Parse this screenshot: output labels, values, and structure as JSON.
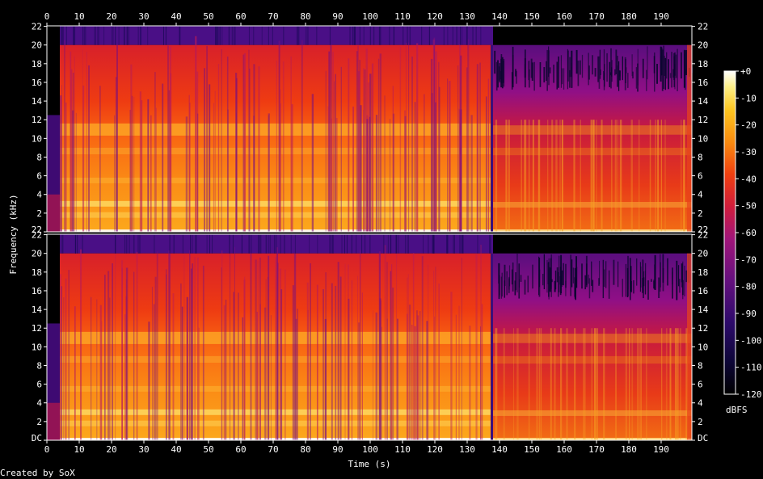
{
  "chart_data": {
    "type": "heatmap",
    "title": "",
    "xlabel": "Time (s)",
    "ylabel": "Frequency (kHz)",
    "xlim": [
      0,
      199.5
    ],
    "ylim": [
      0,
      22.05
    ],
    "x_ticks": [
      0,
      10,
      20,
      30,
      40,
      50,
      60,
      70,
      80,
      90,
      100,
      110,
      120,
      130,
      140,
      150,
      160,
      170,
      180,
      190
    ],
    "y_ticks": [
      {
        "value": 0,
        "label": "DC"
      },
      {
        "value": 2,
        "label": "2"
      },
      {
        "value": 4,
        "label": "4"
      },
      {
        "value": 6,
        "label": "6"
      },
      {
        "value": 8,
        "label": "8"
      },
      {
        "value": 10,
        "label": "10"
      },
      {
        "value": 12,
        "label": "12"
      },
      {
        "value": 14,
        "label": "14"
      },
      {
        "value": 16,
        "label": "16"
      },
      {
        "value": 18,
        "label": "18"
      },
      {
        "value": 20,
        "label": "20"
      },
      {
        "value": 22,
        "label": "22"
      }
    ],
    "colorbar": {
      "label": "dBFS",
      "range": [
        -120,
        0
      ],
      "ticks": [
        "+0",
        "-10",
        "-20",
        "-30",
        "-40",
        "-50",
        "-60",
        "-70",
        "-80",
        "-90",
        "-100",
        "-110",
        "-120"
      ]
    },
    "channels": 2,
    "colors": {
      "background": "#000000",
      "axis": "#ffffff",
      "text": "#ffffff"
    },
    "series": [
      {
        "segments": [
          {
            "t": [
              0,
              4
            ],
            "content": "quiet intro: faint energy below ~12.5 kHz, near silence above"
          },
          {
            "t": [
              4,
              138
            ],
            "content": "full-band energy up to ~20 kHz with cutoff; -20 to -50 dBFS below 12 kHz, strong harmonic bands near 2, 3, 5 and 9-11 kHz"
          },
          {
            "t": [
              138,
              199.5
            ],
            "content": "lower level section; energy mostly below 12 kHz, sparse content up to ~20 kHz, fade-out at end"
          }
        ]
      },
      {
        "segments": [
          {
            "t": [
              0,
              4
            ],
            "content": "quiet intro: faint energy below ~12.5 kHz, near silence above"
          },
          {
            "t": [
              4,
              138
            ],
            "content": "full-band energy up to ~20 kHz with cutoff; -20 to -50 dBFS below 12 kHz, strong harmonic bands near 2, 3, 5 and 9-11 kHz"
          },
          {
            "t": [
              138,
              199.5
            ],
            "content": "lower level section; energy mostly below 12 kHz, sparse content up to ~20 kHz, fade-out at end"
          }
        ]
      }
    ]
  },
  "footer": {
    "credit": "Created by SoX"
  }
}
